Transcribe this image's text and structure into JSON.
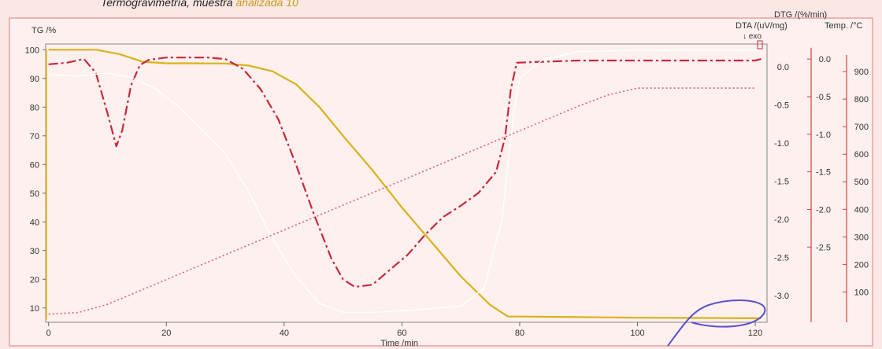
{
  "caption": {
    "text": "Termogravimetría, muestra",
    "subtext": "analizada 10"
  },
  "colors": {
    "background": "#fbe8e4",
    "plot_bg": "#fdf0ee",
    "tg": "#d9b21a",
    "dtg": "#c8283c",
    "dta": "#ffffff",
    "temp": "#e0607a",
    "axis_right": "#d23c4a",
    "annotation": "#5a50d0"
  },
  "chart_data": {
    "type": "line",
    "title": "",
    "xlabel": "Time /min",
    "xlim": [
      -0.5,
      122
    ],
    "x_ticks": [
      0,
      20,
      40,
      60,
      80,
      100,
      120
    ],
    "axes": {
      "tg": {
        "label": "TG /%",
        "lim": [
          5,
          102
        ],
        "ticks": [
          10,
          20,
          30,
          40,
          50,
          60,
          70,
          80,
          90,
          100
        ]
      },
      "dta": {
        "label": "DTA /(uV/mg)",
        "exo_label": "↓ exo",
        "lim": [
          -3.35,
          0.3
        ],
        "ticks": [
          0.0,
          -0.5,
          -1.0,
          -1.5,
          -2.0,
          -2.5,
          -3.0
        ]
      },
      "dtg": {
        "label": "DTG /(%/min)",
        "lim": [
          -3.5,
          0.2
        ],
        "ticks": [
          0.0,
          -0.5,
          -1.0,
          -1.5,
          -2.0,
          -2.5
        ]
      },
      "temp": {
        "label": "Temp. /°C",
        "lim": [
          -10,
          1000
        ],
        "ticks": [
          100,
          200,
          300,
          400,
          500,
          600,
          700,
          800,
          900
        ]
      }
    },
    "series": [
      {
        "key": "tg",
        "axis": "tg",
        "style": "solid",
        "x": [
          0,
          3,
          8,
          12,
          16,
          20,
          25,
          30,
          34,
          38,
          42,
          46,
          50,
          55,
          60,
          65,
          70,
          75,
          78,
          80,
          90,
          100,
          110,
          120,
          121
        ],
        "y": [
          100,
          100,
          100,
          98.5,
          95.8,
          95.3,
          95.3,
          95.2,
          94.5,
          92.5,
          88,
          80,
          70,
          58,
          45,
          33,
          21,
          11,
          7,
          7,
          6.8,
          6.6,
          6.5,
          6.4,
          6.4
        ]
      },
      {
        "key": "dtg",
        "axis": "dtg",
        "style": "dashdot",
        "x": [
          0,
          3,
          6,
          8,
          10,
          11.5,
          12.5,
          14,
          15.5,
          17,
          20,
          23,
          27,
          30,
          33,
          36,
          39,
          42,
          45,
          48,
          50,
          52,
          55,
          58,
          61,
          64,
          67,
          70,
          73,
          76,
          77.5,
          78.5,
          79.5,
          82,
          90,
          100,
          110,
          120,
          121
        ],
        "y": [
          -0.07,
          -0.05,
          0.0,
          -0.18,
          -0.72,
          -1.16,
          -0.95,
          -0.35,
          -0.08,
          -0.01,
          0.02,
          0.02,
          0.02,
          0.0,
          -0.13,
          -0.4,
          -0.8,
          -1.4,
          -2.05,
          -2.65,
          -2.93,
          -3.03,
          -3.0,
          -2.8,
          -2.6,
          -2.33,
          -2.1,
          -1.95,
          -1.78,
          -1.5,
          -1.05,
          -0.4,
          -0.05,
          -0.04,
          -0.02,
          -0.02,
          -0.02,
          -0.02,
          0.0
        ]
      },
      {
        "key": "dta",
        "axis": "dta",
        "style": "solid",
        "x": [
          0,
          5,
          10,
          14,
          18,
          22,
          26,
          30,
          34,
          38,
          42,
          46,
          50,
          55,
          60,
          65,
          70,
          74,
          77,
          79,
          80,
          84,
          90,
          100,
          110,
          120,
          121
        ],
        "y": [
          -0.1,
          -0.12,
          -0.08,
          -0.14,
          -0.28,
          -0.52,
          -0.82,
          -1.14,
          -1.64,
          -2.25,
          -2.75,
          -3.1,
          -3.22,
          -3.22,
          -3.2,
          -3.17,
          -3.14,
          -2.9,
          -2.0,
          -0.6,
          -0.15,
          0.1,
          0.2,
          0.22,
          0.22,
          0.22,
          0.22
        ]
      },
      {
        "key": "temp",
        "axis": "temp",
        "style": "dotted",
        "x": [
          0,
          5,
          10,
          20,
          30,
          40,
          50,
          60,
          70,
          80,
          90,
          95,
          100,
          110,
          120
        ],
        "y": [
          20,
          25,
          55,
          145,
          235,
          325,
          415,
          505,
          595,
          685,
          775,
          815,
          840,
          840,
          840
        ]
      }
    ]
  }
}
